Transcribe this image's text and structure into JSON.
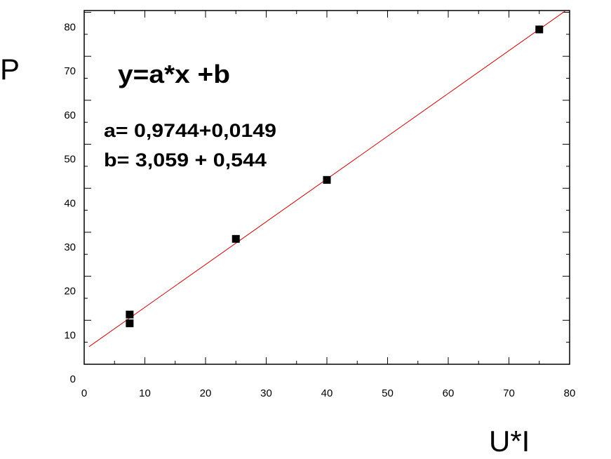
{
  "chart_data": {
    "type": "scatter",
    "x_label": "U*I",
    "y_label": "P",
    "annotations": [
      "y=a*x +b",
      "a= 0,9744+0,0149",
      "b= 3,059 + 0,544"
    ],
    "x": [
      7.5,
      7.5,
      25,
      40,
      75
    ],
    "values": [
      11.3,
      9.3,
      28.5,
      41.9,
      76.1
    ],
    "color": "#000000",
    "fit_line": {
      "x": [
        0.8,
        80
      ],
      "values": [
        4.0,
        81.0
      ],
      "color": "#cc0000"
    },
    "xlim": [
      0,
      80
    ],
    "xticks": [
      0,
      10,
      20,
      30,
      40,
      50,
      60,
      70,
      80
    ],
    "ylim": [
      0,
      80.4
    ],
    "yticks": [
      0,
      10,
      20,
      30,
      40,
      50,
      60,
      70,
      80
    ]
  }
}
